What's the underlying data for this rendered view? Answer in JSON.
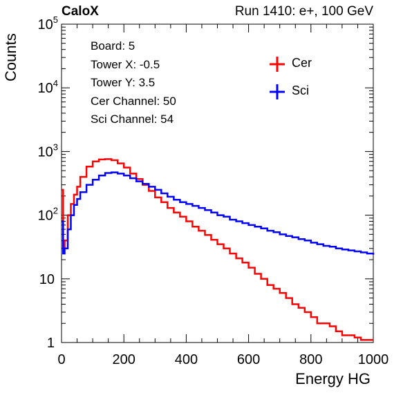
{
  "header": {
    "brand": "CaloX",
    "run_info": "Run 1410: e+, 100 GeV"
  },
  "info_box": {
    "lines": [
      "Board: 5",
      "Tower X: -0.5",
      "Tower Y: 3.5",
      "Cer Channel: 50",
      "Sci Channel: 54"
    ]
  },
  "colors": {
    "cer": "#ff0000",
    "sci": "#0000ff",
    "axis": "#000000"
  },
  "chart_data": {
    "type": "line",
    "title": "",
    "xlabel": "Energy HG",
    "ylabel": "Counts",
    "xlim": [
      0,
      1000
    ],
    "ylim": [
      1,
      100000
    ],
    "yscale": "log",
    "grid": false,
    "legend_position": "top-right",
    "x_ticks": [
      "0",
      "200",
      "400",
      "600",
      "800",
      "1000"
    ],
    "y_ticks": [
      {
        "base": "1",
        "exp": ""
      },
      {
        "base": "10",
        "exp": ""
      },
      {
        "base": "10",
        "exp": "2"
      },
      {
        "base": "10",
        "exp": "3"
      },
      {
        "base": "10",
        "exp": "4"
      },
      {
        "base": "10",
        "exp": "5"
      }
    ],
    "x": [
      0,
      5,
      10,
      20,
      30,
      40,
      50,
      60,
      80,
      100,
      120,
      140,
      160,
      180,
      200,
      220,
      240,
      260,
      280,
      300,
      320,
      340,
      360,
      380,
      400,
      420,
      440,
      460,
      480,
      500,
      520,
      540,
      560,
      580,
      600,
      620,
      640,
      660,
      680,
      700,
      720,
      740,
      760,
      780,
      800,
      820,
      840,
      860,
      880,
      900,
      920,
      940,
      960,
      980,
      1000
    ],
    "series": [
      {
        "name": "Cer",
        "color": "#ff0000",
        "values": [
          250,
          30,
          40,
          100,
          150,
          210,
          280,
          400,
          580,
          700,
          750,
          760,
          730,
          650,
          560,
          450,
          370,
          300,
          240,
          190,
          160,
          130,
          110,
          95,
          80,
          66,
          57,
          49,
          41,
          35,
          30,
          25,
          21,
          18,
          15,
          12,
          10,
          8,
          7,
          6,
          5,
          4,
          3.5,
          3,
          2.5,
          2,
          2,
          1.8,
          1.5,
          1.3,
          1.3,
          1.2,
          1.1,
          1.1,
          1.1
        ]
      },
      {
        "name": "Sci",
        "color": "#0000ff",
        "values": [
          80,
          25,
          30,
          60,
          100,
          145,
          180,
          230,
          300,
          360,
          420,
          460,
          470,
          450,
          420,
          380,
          340,
          310,
          280,
          250,
          220,
          195,
          175,
          160,
          150,
          140,
          130,
          120,
          110,
          100,
          95,
          85,
          80,
          75,
          70,
          66,
          62,
          57,
          54,
          50,
          47,
          45,
          42,
          40,
          37,
          35,
          33,
          32,
          30,
          29,
          28,
          27,
          26,
          25,
          24
        ]
      }
    ]
  }
}
